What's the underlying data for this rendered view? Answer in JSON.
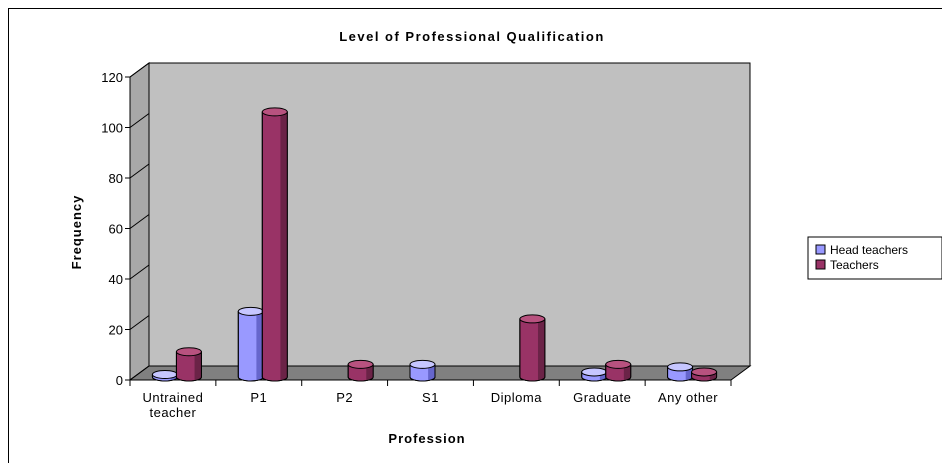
{
  "chart_data": {
    "type": "bar",
    "title": "Level of Professional Qualification",
    "xlabel": "Profession",
    "ylabel": "Frequency",
    "categories": [
      "Untrained teacher",
      "P1",
      "P2",
      "S1",
      "Diploma",
      "Graduate",
      "Any other"
    ],
    "category_lines": [
      [
        "Untrained",
        "teacher"
      ],
      [
        "P1"
      ],
      [
        "P2"
      ],
      [
        "S1"
      ],
      [
        "Diploma"
      ],
      [
        "Graduate"
      ],
      [
        "Any other"
      ]
    ],
    "series": [
      {
        "name": "Head teachers",
        "values": [
          1,
          26,
          0,
          5,
          0,
          2,
          4
        ],
        "color": "#9999ff",
        "dark": "#6666cc",
        "light": "#c6c6ff"
      },
      {
        "name": "Teachers",
        "values": [
          10,
          105,
          5,
          0,
          23,
          5,
          2
        ],
        "color": "#993366",
        "dark": "#6b2347",
        "light": "#b8527f"
      }
    ],
    "ylim": [
      0,
      120
    ],
    "yticks": [
      "0",
      "20",
      "40",
      "60",
      "80",
      "100",
      "120"
    ],
    "grid": false,
    "legend_position": "right",
    "three_d": true,
    "colors": {
      "plot_back": "#c0c0c0",
      "plot_side": "#a8a8a8",
      "floor": "#808080"
    }
  }
}
